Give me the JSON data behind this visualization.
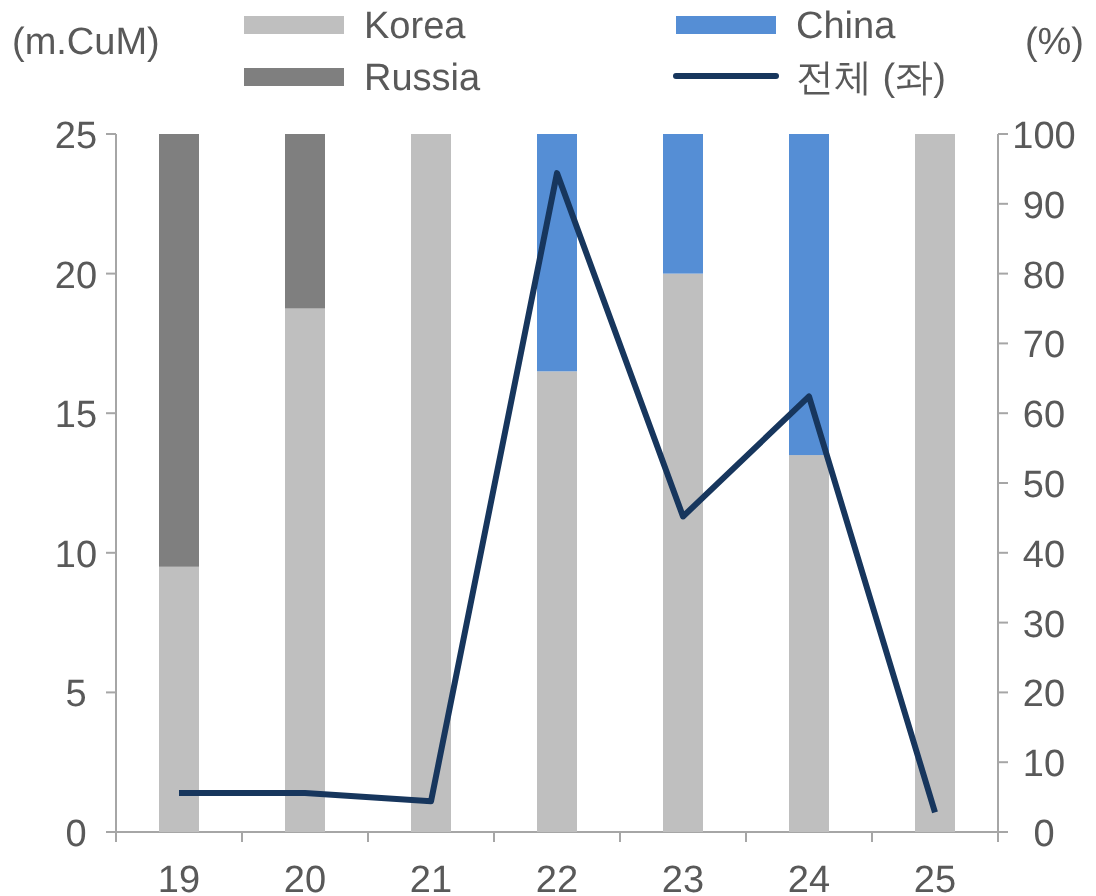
{
  "chart_data": {
    "type": "bar",
    "stacked": true,
    "legend": "top",
    "ylabel": "(m.CuM)",
    "y2label": "(%)",
    "categories": [
      "19",
      "20",
      "21",
      "22",
      "23",
      "24",
      "25"
    ],
    "ylim": [
      0,
      25
    ],
    "yticks": [
      0,
      5,
      10,
      15,
      20,
      25
    ],
    "y2lim": [
      0,
      100
    ],
    "y2ticks": [
      0,
      10,
      20,
      30,
      40,
      50,
      60,
      70,
      80,
      90,
      100
    ],
    "series": [
      {
        "name": "Korea",
        "color": "#bfbfbf",
        "axis": "y2",
        "values": [
          38,
          75,
          100,
          66,
          80,
          54,
          100
        ]
      },
      {
        "name": "China",
        "color": "#558ed5",
        "axis": "y2",
        "values": [
          null,
          null,
          null,
          34,
          20,
          46,
          null
        ]
      },
      {
        "name": "Russia",
        "color": "#7f7f7f",
        "axis": "y2",
        "values": [
          62,
          25,
          null,
          null,
          null,
          null,
          null
        ]
      },
      {
        "name": "전체 (좌)",
        "type": "line",
        "color": "#17365d",
        "values": [
          1.4,
          1.4,
          1.1,
          23.6,
          11.3,
          15.6,
          0.7
        ]
      }
    ]
  }
}
